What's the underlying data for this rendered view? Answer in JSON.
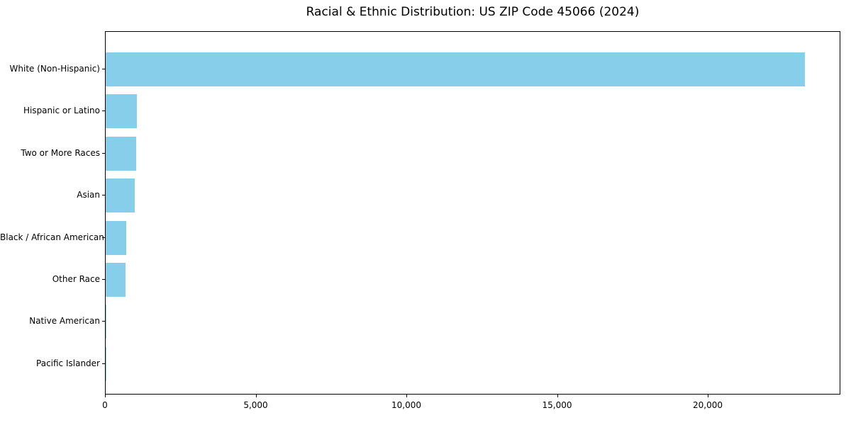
{
  "figure": {
    "title": "Racial & Ethnic Distribution: US ZIP Code 45066 (2024)"
  },
  "chart_data": {
    "type": "bar",
    "orientation": "horizontal",
    "title": "Racial & Ethnic Distribution: US ZIP Code 45066 (2024)",
    "categories": [
      "White (Non-Hispanic)",
      "Hispanic or Latino",
      "Two or More Races",
      "Asian",
      "Black / African American",
      "Other Race",
      "Native American",
      "Pacific Islander"
    ],
    "values": [
      23200,
      1040,
      1010,
      960,
      675,
      650,
      30,
      10
    ],
    "xlabel": "",
    "ylabel": "",
    "xlim": [
      0,
      24400
    ],
    "xticks": [
      {
        "value": 0,
        "label": "0"
      },
      {
        "value": 5000,
        "label": "5,000"
      },
      {
        "value": 10000,
        "label": "10,000"
      },
      {
        "value": 15000,
        "label": "15,000"
      },
      {
        "value": 20000,
        "label": "20,000"
      }
    ],
    "bar_color": "#87CEEB",
    "frame_color": "#000000",
    "grid": false,
    "legend": null
  }
}
